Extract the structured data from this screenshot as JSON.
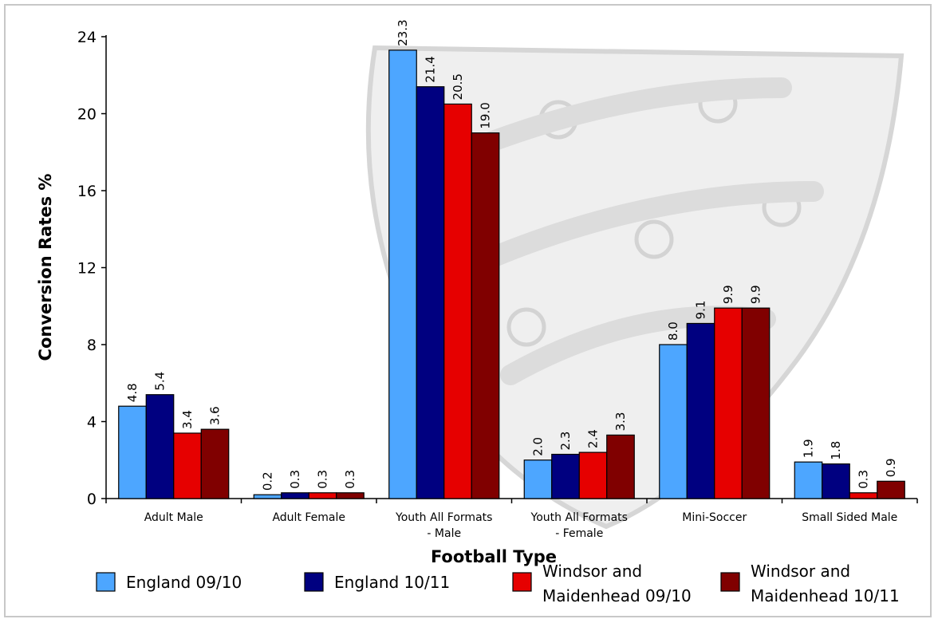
{
  "chart_data": {
    "type": "bar",
    "xlabel": "Football Type",
    "ylabel": "Conversion Rates %",
    "ylim": [
      0,
      24
    ],
    "yticks": [
      0,
      4,
      8,
      12,
      16,
      20,
      24
    ],
    "grid": false,
    "legend_position": "bottom",
    "categories": [
      [
        "Adult Male"
      ],
      [
        "Adult Female"
      ],
      [
        "Youth All Formats",
        "- Male"
      ],
      [
        "Youth All Formats",
        "- Female"
      ],
      [
        "Mini-Soccer"
      ],
      [
        "Small Sided Male"
      ]
    ],
    "series": [
      {
        "name": "England 09/10",
        "color": "#4da6ff",
        "values": [
          4.8,
          0.2,
          23.3,
          2.0,
          8.0,
          1.9
        ],
        "labels": [
          "4.8",
          "0.2",
          "23.3",
          "2.0",
          "8.0",
          "1.9"
        ]
      },
      {
        "name": "England 10/11",
        "color": "#000080",
        "values": [
          5.4,
          0.3,
          21.4,
          2.3,
          9.1,
          1.8
        ],
        "labels": [
          "5.4",
          "0.3",
          "21.4",
          "2.3",
          "9.1",
          "1.8"
        ]
      },
      {
        "name": [
          "Windsor and",
          "Maidenhead 09/10"
        ],
        "color": "#e60000",
        "values": [
          3.4,
          0.3,
          20.5,
          2.4,
          9.9,
          0.3
        ],
        "labels": [
          "3.4",
          "0.3",
          "20.5",
          "2.4",
          "9.9",
          "0.3"
        ]
      },
      {
        "name": [
          "Windsor and",
          "Maidenhead 10/11"
        ],
        "color": "#800000",
        "values": [
          3.6,
          0.3,
          19.0,
          3.3,
          9.9,
          0.9
        ],
        "labels": [
          "3.6",
          "0.3",
          "19.0",
          "3.3",
          "9.9",
          "0.9"
        ]
      }
    ]
  }
}
